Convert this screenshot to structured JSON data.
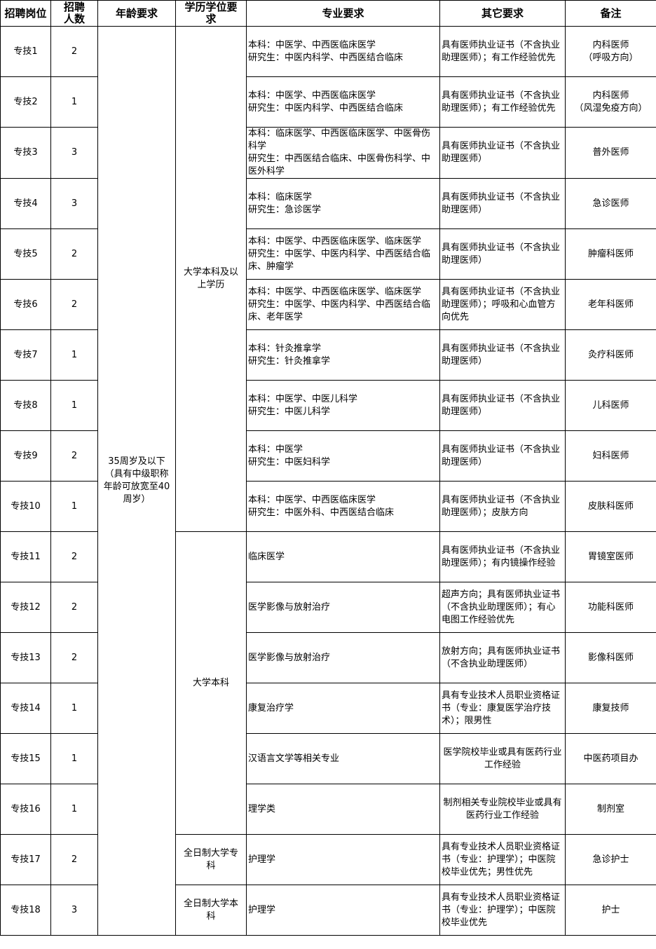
{
  "headers": [
    "招聘岗位",
    "招聘\n人数",
    "年龄要求",
    "学历学位要\n求",
    "专业要求",
    "其它要求",
    "备注"
  ],
  "age_requirement": "35周岁及以下\n（具有中级职称\n年龄可放宽至40\n周岁）",
  "education_groups": [
    {
      "text": "大学本科及以\n上学历",
      "span": 10
    },
    {
      "text": "大学本科",
      "span": 6
    },
    {
      "text": "全日制大学专\n科",
      "span": 1
    },
    {
      "text": "全日制大学本\n科",
      "span": 1
    }
  ],
  "rows": [
    {
      "post": "专技1",
      "count": "2",
      "major": "本科：中医学、中西医临床医学\n研究生：中医内科学、中西医结合临床",
      "other": "具有医师执业证书（不含执业助理医师）；有工作经验优先",
      "note": "内科医师\n（呼吸方向）"
    },
    {
      "post": "专技2",
      "count": "1",
      "major": "本科：中医学、中西医临床医学\n研究生：中医内科学、中西医结合临床",
      "other": "具有医师执业证书（不含执业助理医师）；有工作经验优先",
      "note": "内科医师\n（风湿免疫方向）"
    },
    {
      "post": "专技3",
      "count": "3",
      "major": "本科：临床医学、中西医临床医学、中医骨伤科学\n研究生：中西医结合临床、中医骨伤科学、中医外科学",
      "other": "具有医师执业证书（不含执业助理医师）",
      "note": "普外医师"
    },
    {
      "post": "专技4",
      "count": "3",
      "major": "本科：临床医学\n研究生：急诊医学",
      "other": "具有医师执业证书（不含执业助理医师）",
      "note": "急诊医师"
    },
    {
      "post": "专技5",
      "count": "2",
      "major": "本科：中医学、中西医临床医学、临床医学\n研究生：中医学、中医内科学、中西医结合临床、肿瘤学",
      "other": "具有医师执业证书（不含执业助理医师）",
      "note": "肿瘤科医师"
    },
    {
      "post": "专技6",
      "count": "2",
      "major": "本科：中医学、中西医临床医学、临床医学\n研究生：中医学、中医内科学、中西医结合临床、老年医学",
      "other": "具有医师执业证书（不含执业助理医师）；呼吸和心血管方向优先",
      "note": "老年科医师"
    },
    {
      "post": "专技7",
      "count": "1",
      "major": "本科：针灸推拿学\n研究生：针灸推拿学",
      "other": "具有医师执业证书（不含执业助理医师）",
      "note": "灸疗科医师"
    },
    {
      "post": "专技8",
      "count": "1",
      "major": "本科：中医学、中医儿科学\n研究生：中医儿科学",
      "other": "具有医师执业证书（不含执业助理医师）",
      "note": "儿科医师"
    },
    {
      "post": "专技9",
      "count": "2",
      "major": "本科：中医学\n研究生：中医妇科学",
      "other": "具有医师执业证书（不含执业助理医师）",
      "note": "妇科医师"
    },
    {
      "post": "专技10",
      "count": "1",
      "major": "本科：中医学、中西医临床医学\n研究生：中医外科、中西医结合临床",
      "other": "具有医师执业证书（不含执业助理医师）；皮肤方向",
      "note": "皮肤科医师"
    },
    {
      "post": "专技11",
      "count": "2",
      "major": "临床医学",
      "other": "具有医师执业证书（不含执业助理医师）；有内镜操作经验",
      "note": "胃镜室医师"
    },
    {
      "post": "专技12",
      "count": "2",
      "major": "医学影像与放射治疗",
      "other": "超声方向；具有医师执业证书（不含执业助理医师）；有心电图工作经验优先",
      "note": "功能科医师"
    },
    {
      "post": "专技13",
      "count": "2",
      "major": "医学影像与放射治疗",
      "other": "放射方向；具有医师执业证书（不含执业助理医师）",
      "note": "影像科医师"
    },
    {
      "post": "专技14",
      "count": "1",
      "major": "康复治疗学",
      "other": "具有专业技术人员职业资格证书（专业：康复医学治疗技术）；限男性",
      "note": "康复技师"
    },
    {
      "post": "专技15",
      "count": "1",
      "major": "汉语言文学等相关专业",
      "other": "医学院校毕业或具有医药行业工作经验",
      "other_center": true,
      "note": "中医药项目办"
    },
    {
      "post": "专技16",
      "count": "1",
      "major": "理学类",
      "other": "制剂相关专业院校毕业或具有医药行业工作经验",
      "other_center": true,
      "note": "制剂室"
    },
    {
      "post": "专技17",
      "count": "2",
      "major": "护理学",
      "other": "具有专业技术人员职业资格证书（专业：护理学）；中医院校毕业优先；男性优先",
      "note": "急诊护士"
    },
    {
      "post": "专技18",
      "count": "3",
      "major": "护理学",
      "other": "具有专业技术人员职业资格证书（专业：护理学）；中医院校毕业优先",
      "note": "护士"
    }
  ]
}
